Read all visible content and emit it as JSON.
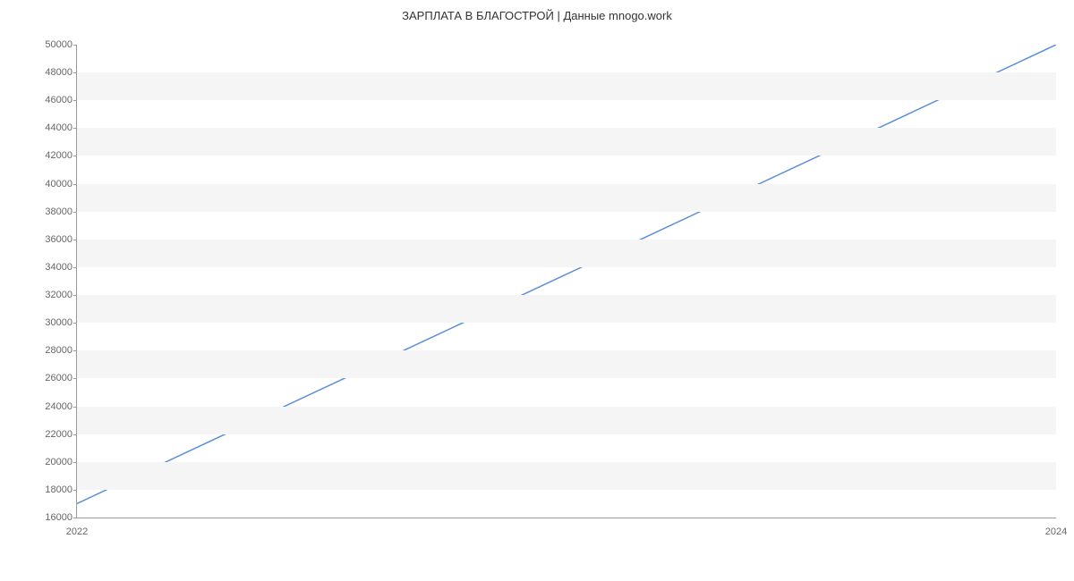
{
  "chart": {
    "type": "line",
    "title": "ЗАРПЛАТА В БЛАГОСТРОЙ | Данные mnogo.work",
    "title_fontsize": 13,
    "title_color": "#333333",
    "background_color": "#ffffff",
    "grid_band_color": "#f5f5f5",
    "axis_color": "#999999",
    "tick_color": "#666666",
    "tick_fontsize": 11,
    "line_color": "#5b8fd6",
    "line_width": 1.5,
    "ylim": [
      16000,
      50000
    ],
    "ytick_step": 2000,
    "yticks": [
      16000,
      18000,
      20000,
      22000,
      24000,
      26000,
      28000,
      30000,
      32000,
      34000,
      36000,
      38000,
      40000,
      42000,
      44000,
      46000,
      48000,
      50000
    ],
    "xticks": [
      "2022",
      "2024"
    ],
    "x_values": [
      0,
      1
    ],
    "y_values": [
      17000,
      50000
    ]
  }
}
